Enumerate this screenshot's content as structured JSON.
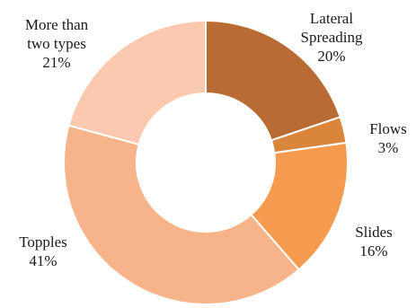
{
  "chart_data": {
    "type": "pie",
    "donut": true,
    "title": "",
    "slices": [
      {
        "name": "Lateral Spreading",
        "label_lines": [
          "Lateral",
          "Spreading"
        ],
        "value": 20,
        "pct_label": "20%",
        "color": "#b86b33"
      },
      {
        "name": "Flows",
        "label_lines": [
          "Flows"
        ],
        "value": 3,
        "pct_label": "3%",
        "color": "#d9853c"
      },
      {
        "name": "Slides",
        "label_lines": [
          "Slides"
        ],
        "value": 16,
        "pct_label": "16%",
        "color": "#f59a4e"
      },
      {
        "name": "Topples",
        "label_lines": [
          "Topples"
        ],
        "value": 41,
        "pct_label": "41%",
        "color": "#f7b48a"
      },
      {
        "name": "More than two types",
        "label_lines": [
          "More than",
          "two types"
        ],
        "value": 21,
        "pct_label": "21%",
        "color": "#fac9b0"
      }
    ]
  }
}
